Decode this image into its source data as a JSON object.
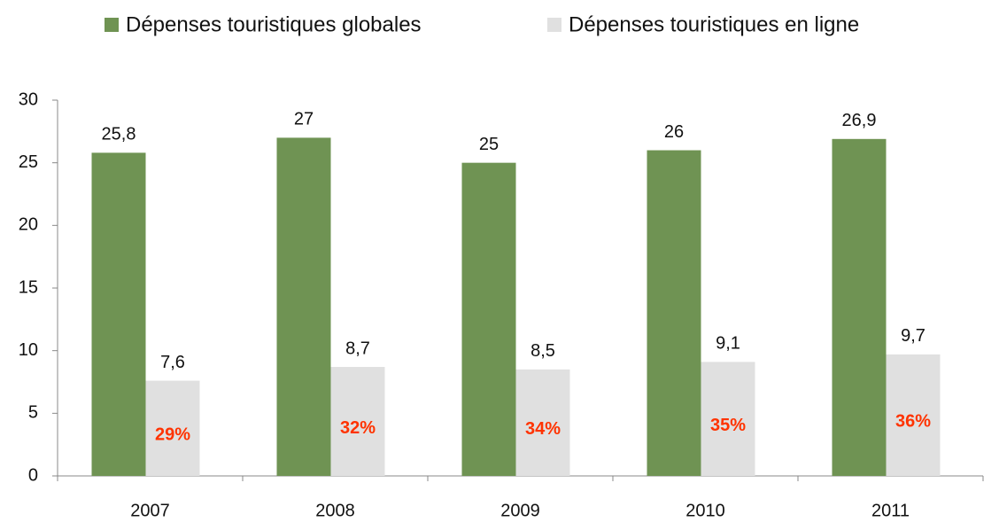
{
  "chart_data": {
    "type": "bar",
    "categories": [
      "2007",
      "2008",
      "2009",
      "2010",
      "2011"
    ],
    "series": [
      {
        "name": "Dépenses touristiques globales",
        "color": "#6f9353",
        "values": [
          25.8,
          27,
          25,
          26,
          26.9
        ],
        "value_labels": [
          "25,8",
          "27",
          "25",
          "26",
          "26,9"
        ]
      },
      {
        "name": "Dépenses touristiques en ligne",
        "color": "#e0e0e0",
        "values": [
          7.6,
          8.7,
          8.5,
          9.1,
          9.7
        ],
        "value_labels": [
          "7,6",
          "8,7",
          "8,5",
          "9,1",
          "9,7"
        ]
      }
    ],
    "annotations": [
      "29%",
      "32%",
      "34%",
      "35%",
      "36%"
    ],
    "annotation_color": "#ff3300",
    "ylim": [
      0,
      30
    ],
    "yticks": [
      0,
      5,
      10,
      15,
      20,
      25,
      30
    ],
    "grid": false,
    "legend": "top"
  }
}
